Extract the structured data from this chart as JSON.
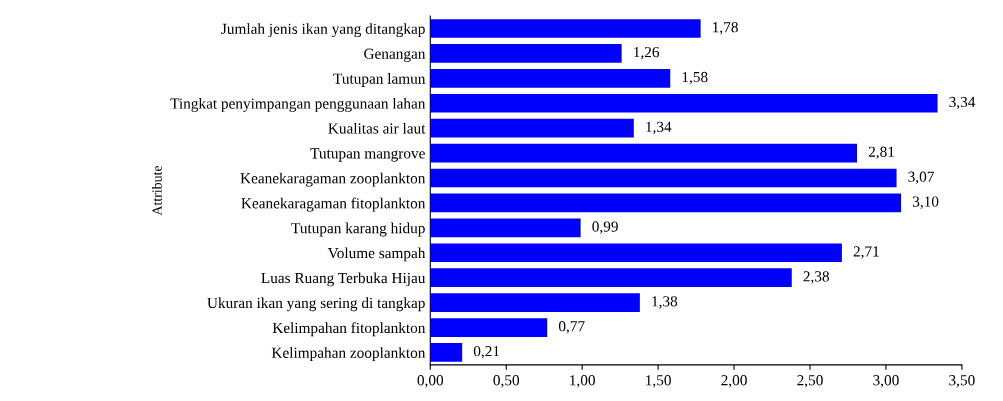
{
  "chart_data": {
    "type": "bar",
    "orientation": "horizontal",
    "ylabel": "Attribute",
    "categories": [
      "Jumlah jenis ikan yang ditangkap",
      "Genangan",
      "Tutupan lamun",
      "Tingkat penyimpangan penggunaan lahan",
      "Kualitas air laut",
      "Tutupan mangrove",
      "Keanekaragaman zooplankton",
      "Keanekaragaman fitoplankton",
      "Tutupan karang hidup",
      "Volume sampah",
      "Luas Ruang Terbuka Hijau",
      "Ukuran ikan yang sering di tangkap",
      "Kelimpahan fitoplankton",
      "Kelimpahan zooplankton"
    ],
    "values": [
      1.78,
      1.26,
      1.58,
      3.34,
      1.34,
      2.81,
      3.07,
      3.1,
      0.99,
      2.71,
      2.38,
      1.38,
      0.77,
      0.21
    ],
    "value_labels": [
      "1,78",
      "1,26",
      "1,58",
      "3,34",
      "1,34",
      "2,81",
      "3,07",
      "3,10",
      "0,99",
      "2,71",
      "2,38",
      "1,38",
      "0,77",
      "0,21"
    ],
    "color": "#0000ff",
    "xlim": [
      0,
      3.5
    ],
    "xticks": [
      {
        "value": 0,
        "label": "0,00"
      },
      {
        "value": 0.5,
        "label": "0,50"
      },
      {
        "value": 1,
        "label": "1,00"
      },
      {
        "value": 1.5,
        "label": "1,50"
      },
      {
        "value": 2,
        "label": "2,00"
      },
      {
        "value": 2.5,
        "label": "2,50"
      },
      {
        "value": 3,
        "label": "3,00"
      },
      {
        "value": 3.5,
        "label": "3,50"
      }
    ],
    "grid": false
  }
}
